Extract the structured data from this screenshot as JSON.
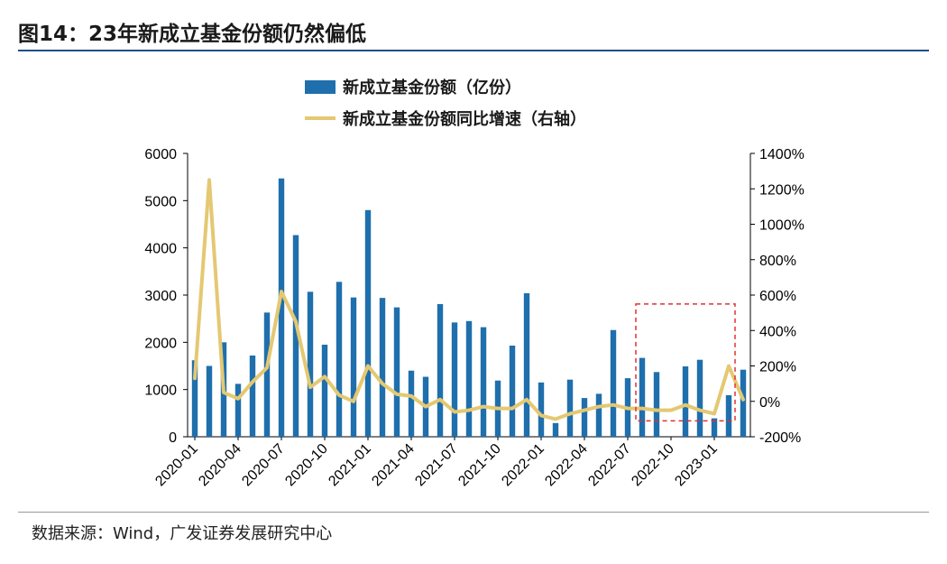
{
  "header": {
    "title": "图14：23年新成立基金份额仍然偏低"
  },
  "footer": {
    "source": "数据来源：Wind，广发证券发展研究中心"
  },
  "chart_data": {
    "type": "bar",
    "title": "",
    "xlabel": "",
    "ylabel": "",
    "categories": [
      "2020-01",
      "2020-02",
      "2020-03",
      "2020-04",
      "2020-05",
      "2020-06",
      "2020-07",
      "2020-08",
      "2020-09",
      "2020-10",
      "2020-11",
      "2020-12",
      "2021-01",
      "2021-02",
      "2021-03",
      "2021-04",
      "2021-05",
      "2021-06",
      "2021-07",
      "2021-08",
      "2021-09",
      "2021-10",
      "2021-11",
      "2021-12",
      "2022-01",
      "2022-02",
      "2022-03",
      "2022-04",
      "2022-05",
      "2022-06",
      "2022-07",
      "2022-08",
      "2022-09",
      "2022-10",
      "2022-11",
      "2022-12",
      "2023-01",
      "2023-02",
      "2023-03"
    ],
    "x_tick_labels": [
      "2020-01",
      "2020-04",
      "2020-07",
      "2020-10",
      "2021-01",
      "2021-04",
      "2021-07",
      "2021-10",
      "2022-01",
      "2022-04",
      "2022-07",
      "2022-10",
      "2023-01"
    ],
    "y_ticks": [
      "0",
      "1000",
      "2000",
      "3000",
      "4000",
      "5000",
      "6000"
    ],
    "y2_ticks": [
      "-200%",
      "0%",
      "200%",
      "400%",
      "600%",
      "800%",
      "1000%",
      "1200%",
      "1400%"
    ],
    "ylim": [
      0,
      6000
    ],
    "y2lim": [
      -200,
      1400
    ],
    "legend_position": "top-center",
    "grid": false,
    "series": [
      {
        "name": "新成立基金份额（亿份）",
        "type": "bar",
        "axis": "left",
        "color": "#1f6fad",
        "values": [
          1620,
          1500,
          2000,
          1120,
          1720,
          2630,
          5470,
          4270,
          3070,
          1950,
          3280,
          2950,
          4800,
          2940,
          2740,
          1400,
          1270,
          2810,
          2420,
          2450,
          2320,
          1190,
          1930,
          3040,
          1150,
          290,
          1210,
          820,
          910,
          2260,
          1240,
          1670,
          1370,
          0,
          1490,
          1630,
          390,
          880,
          1420
        ]
      },
      {
        "name": "新成立基金份额同比增速（右轴）",
        "type": "line",
        "axis": "right",
        "color": "#e4c872",
        "values": [
          130,
          1250,
          50,
          15,
          110,
          190,
          620,
          450,
          80,
          140,
          35,
          0,
          200,
          100,
          40,
          30,
          -30,
          10,
          -60,
          -50,
          -30,
          -40,
          -40,
          10,
          -80,
          -100,
          -70,
          -50,
          -30,
          -20,
          -40,
          -40,
          -50,
          -50,
          -20,
          -50,
          -70,
          200,
          10
        ]
      }
    ],
    "annotation": {
      "type": "dashed-box",
      "color": "#e03030",
      "x_from": "2022-08",
      "x_to": "2023-02",
      "y2_from": -110,
      "y2_to": 550
    }
  }
}
